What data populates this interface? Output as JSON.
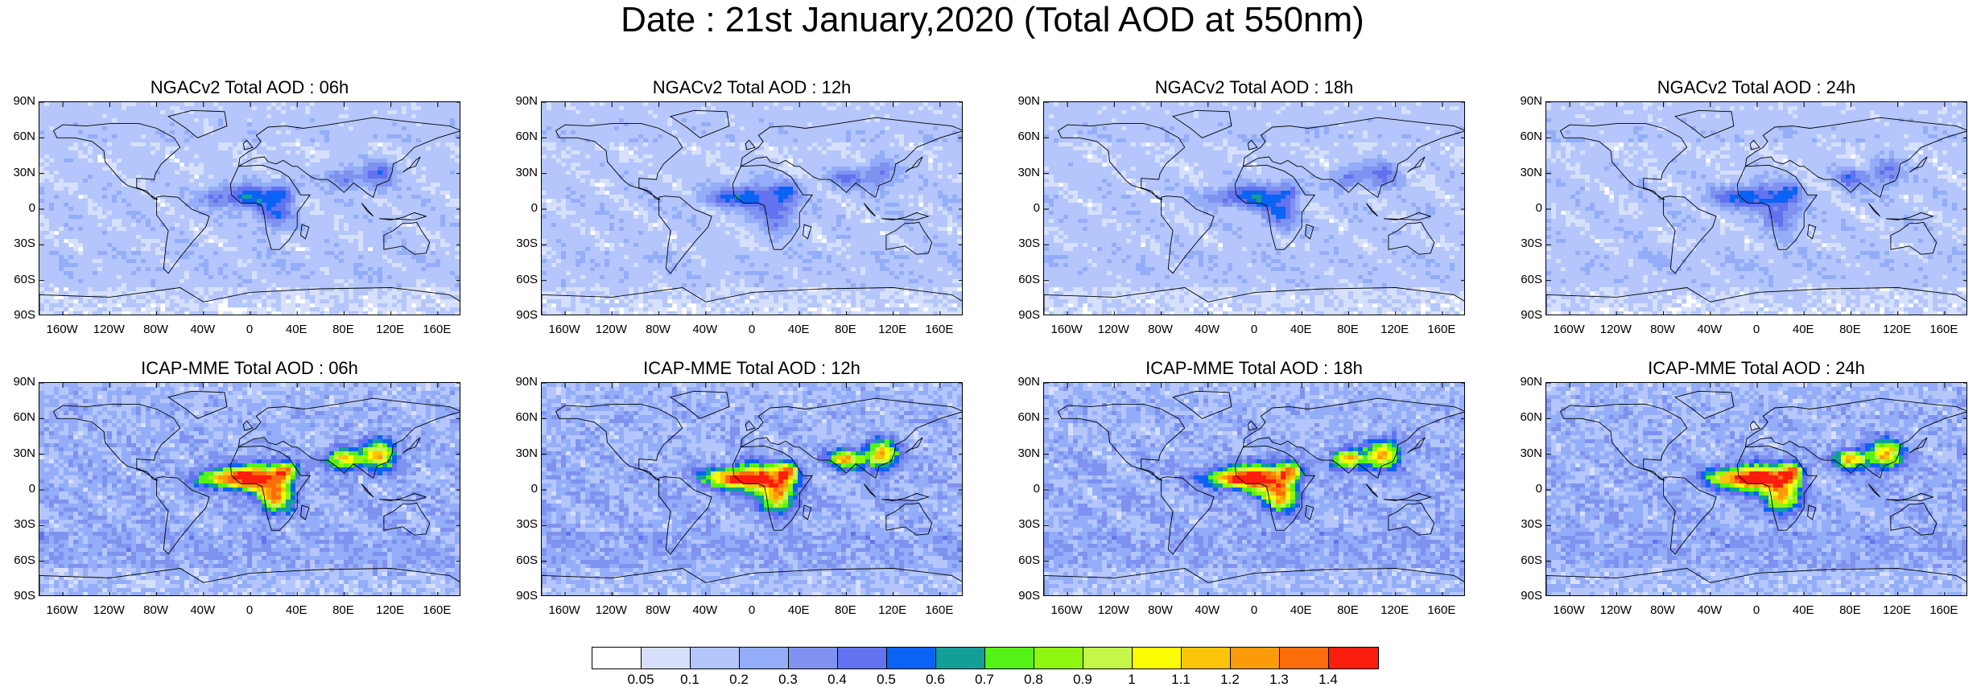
{
  "title": "Date : 21st January,2020 (Total AOD at 550nm)",
  "panels": [
    {
      "title": "NGACv2 Total AOD : 06h",
      "model": "NGACv2"
    },
    {
      "title": "NGACv2 Total AOD : 12h",
      "model": "NGACv2"
    },
    {
      "title": "NGACv2 Total AOD : 18h",
      "model": "NGACv2"
    },
    {
      "title": "NGACv2 Total AOD : 24h",
      "model": "NGACv2"
    },
    {
      "title": "ICAP-MME Total AOD : 06h",
      "model": "ICAP-MME"
    },
    {
      "title": "ICAP-MME Total AOD : 12h",
      "model": "ICAP-MME"
    },
    {
      "title": "ICAP-MME Total AOD : 18h",
      "model": "ICAP-MME"
    },
    {
      "title": "ICAP-MME Total AOD : 24h",
      "model": "ICAP-MME"
    }
  ],
  "lat_ticks": [
    "90N",
    "60N",
    "30N",
    "0",
    "30S",
    "60S",
    "90S"
  ],
  "lon_ticks": [
    "160W",
    "120W",
    "80W",
    "40W",
    "0",
    "40E",
    "80E",
    "120E",
    "160E"
  ],
  "lat_tick_values": [
    90,
    60,
    30,
    0,
    -30,
    -60,
    -90
  ],
  "lon_tick_values": [
    -160,
    -120,
    -80,
    -40,
    0,
    40,
    80,
    120,
    160
  ],
  "colorbar": {
    "levels": [
      "0.05",
      "0.1",
      "0.2",
      "0.3",
      "0.4",
      "0.5",
      "0.6",
      "0.7",
      "0.8",
      "0.9",
      "1",
      "1.1",
      "1.2",
      "1.3",
      "1.4"
    ],
    "colors": [
      "#ffffff",
      "#d6e0fb",
      "#b4c6fb",
      "#93adf8",
      "#7f92ef",
      "#6372ef",
      "#0a63f5",
      "#119f98",
      "#55f217",
      "#8ff70f",
      "#c5f74a",
      "#fbfc02",
      "#fbc409",
      "#fb9b0a",
      "#fb6c0b",
      "#fb1d0d"
    ]
  },
  "colors": {
    "land_outline": "#000000",
    "background_aod": "#cfdbfa"
  }
}
